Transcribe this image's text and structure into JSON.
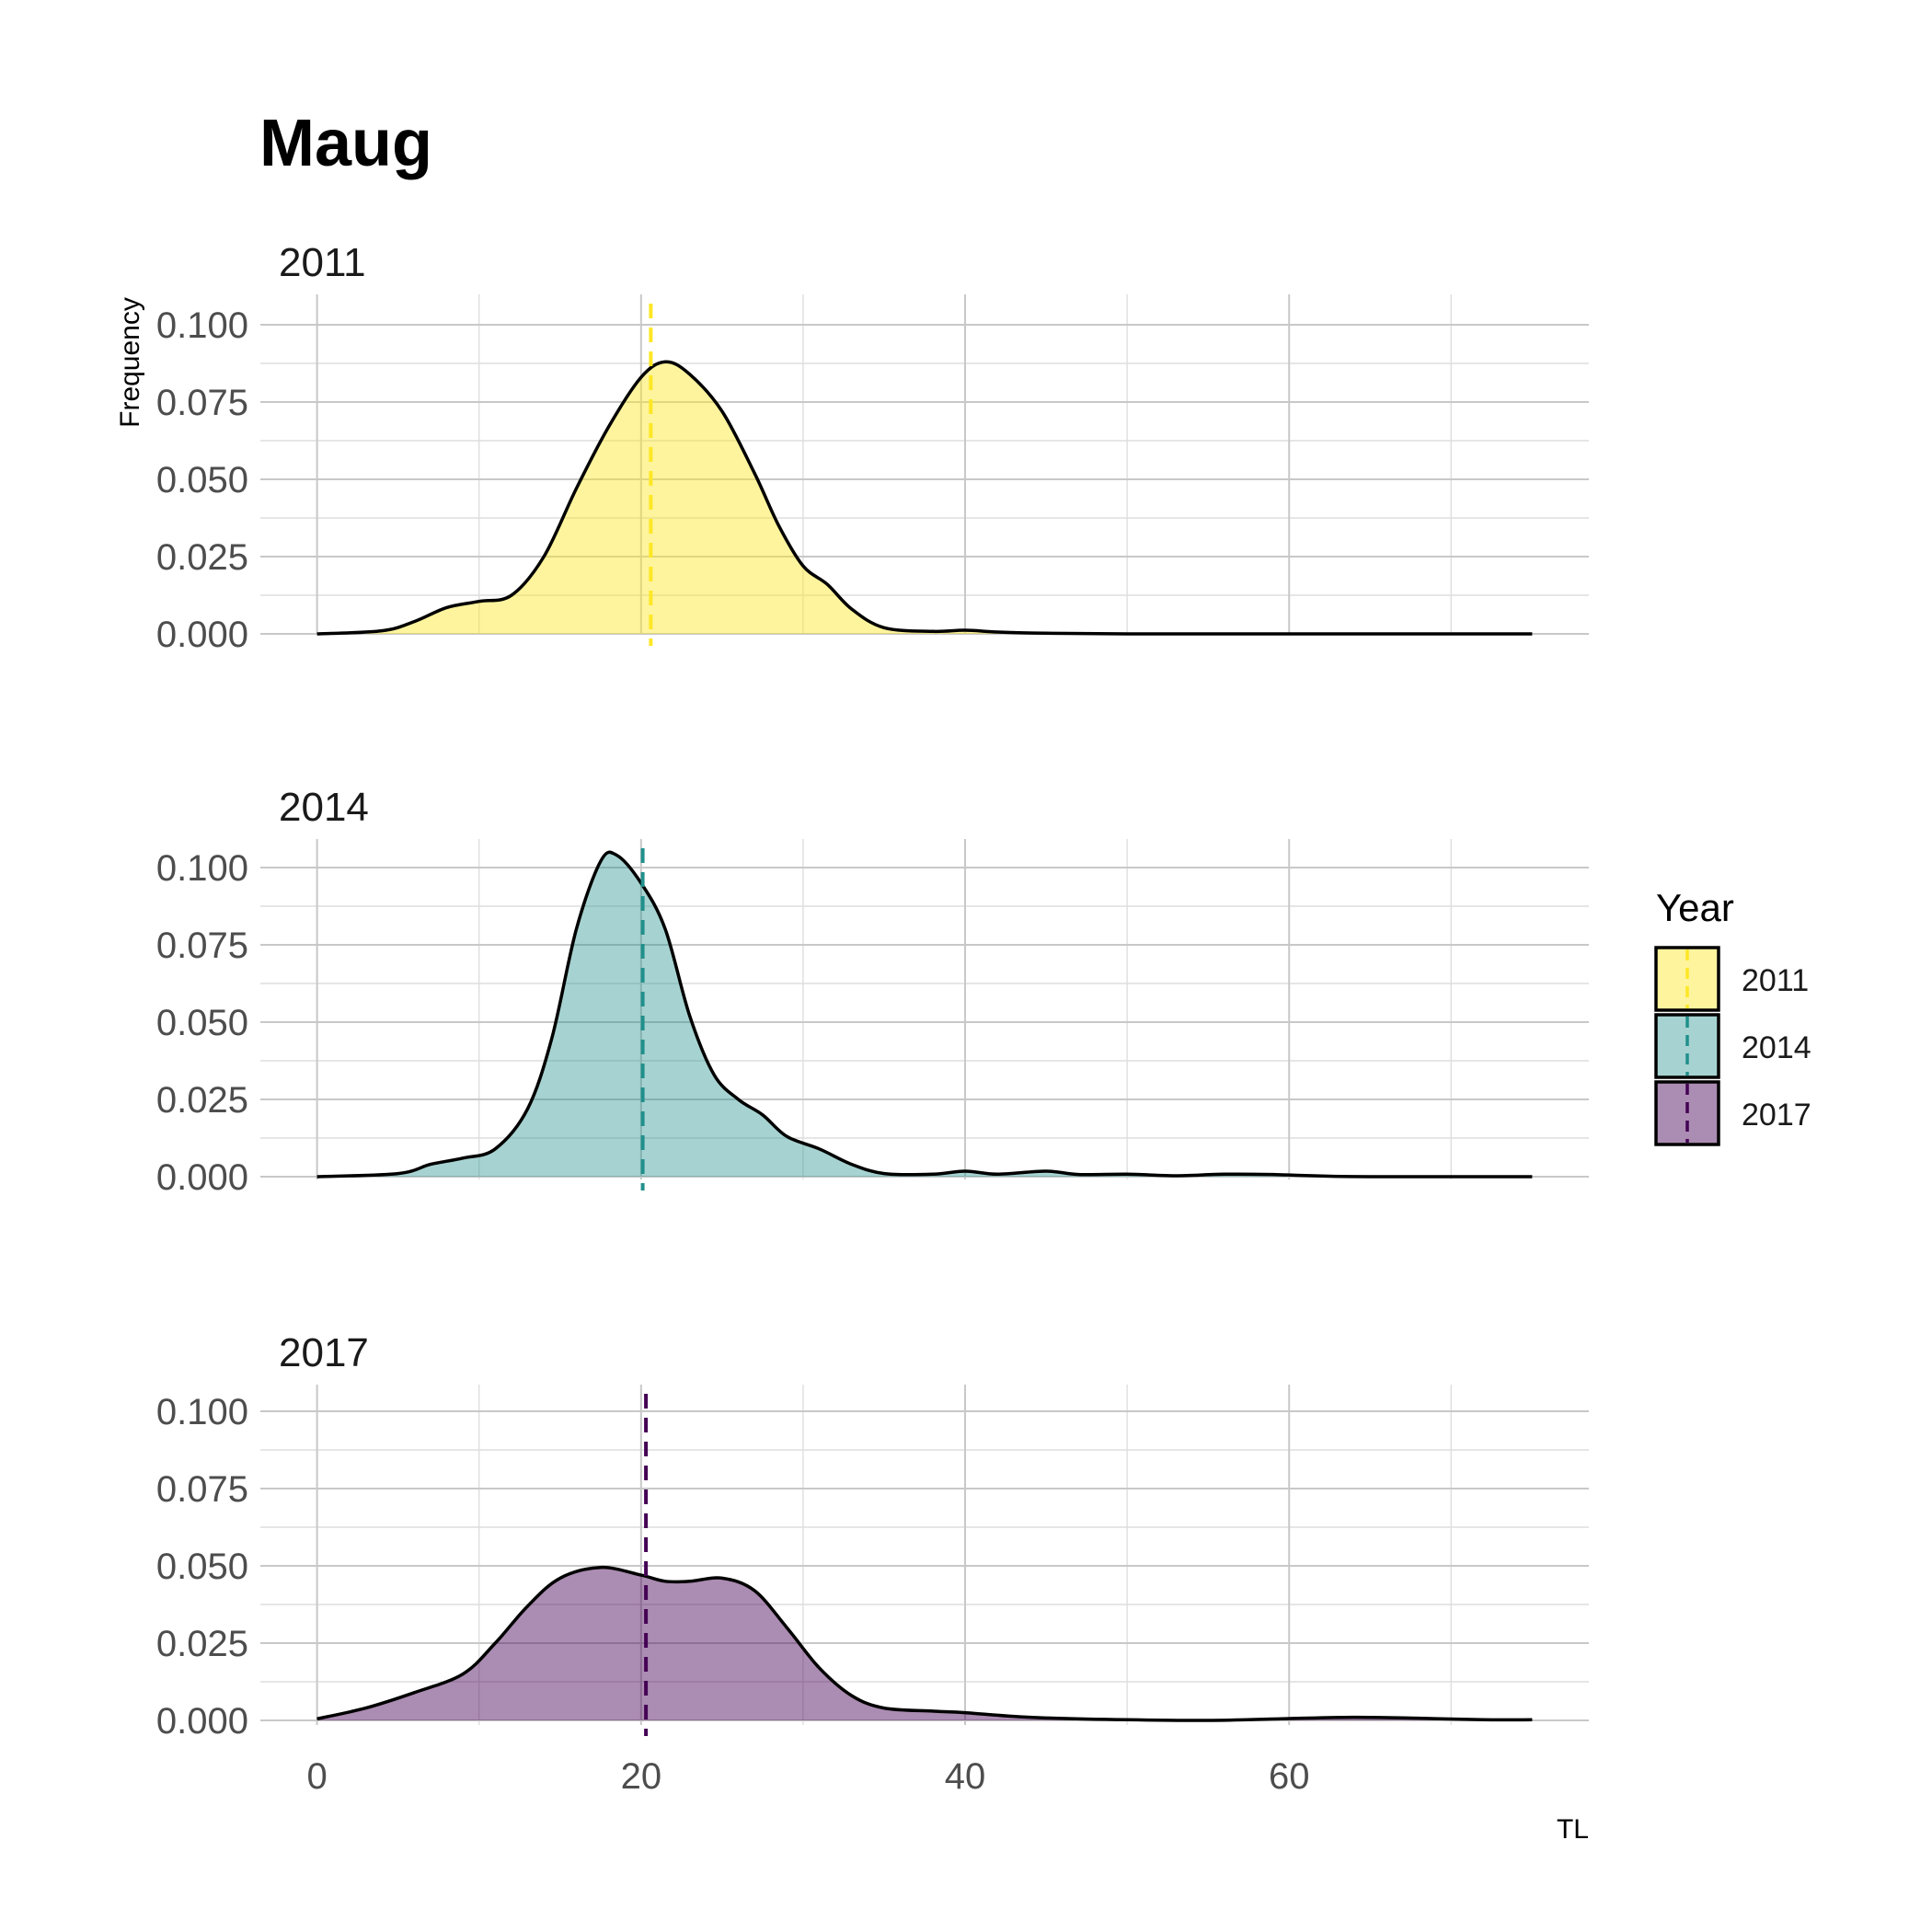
{
  "chart_data": {
    "type": "area",
    "title": "Maug",
    "xlabel": "TL",
    "ylabel": "Frequency",
    "xlim": [
      -3.5,
      78.5
    ],
    "ylim": [
      0,
      0.109
    ],
    "x_ticks": [
      "0",
      "20",
      "40",
      "60"
    ],
    "x_tick_values": [
      0,
      20,
      40,
      60
    ],
    "y_ticks": [
      "0.000",
      "0.025",
      "0.050",
      "0.075",
      "0.100"
    ],
    "y_tick_values": [
      0,
      0.025,
      0.05,
      0.075,
      0.1
    ],
    "grid": true,
    "legend": {
      "title": "Year",
      "placement": "right",
      "entries": [
        "2011",
        "2014",
        "2017"
      ]
    },
    "series": [
      {
        "name": "2011",
        "facet_title": "2011",
        "fill": "#FDE725",
        "fill_opacity": 0.45,
        "mean_line": 20.6,
        "mean_color": "#FDE725",
        "points": [
          [
            0,
            0
          ],
          [
            4,
            0.001
          ],
          [
            6,
            0.004
          ],
          [
            8,
            0.0085
          ],
          [
            10,
            0.0105
          ],
          [
            12,
            0.0125
          ],
          [
            14,
            0.025
          ],
          [
            16,
            0.047
          ],
          [
            18,
            0.067
          ],
          [
            20,
            0.083
          ],
          [
            21.5,
            0.088
          ],
          [
            23,
            0.084
          ],
          [
            25,
            0.072
          ],
          [
            27,
            0.052
          ],
          [
            28.5,
            0.035
          ],
          [
            30,
            0.022
          ],
          [
            31.5,
            0.016
          ],
          [
            33,
            0.008
          ],
          [
            35,
            0.002
          ],
          [
            38,
            0.0008
          ],
          [
            40,
            0.0012
          ],
          [
            42,
            0.0006
          ],
          [
            45,
            0.0002
          ],
          [
            50,
            0
          ],
          [
            60,
            0
          ],
          [
            75,
            0
          ]
        ]
      },
      {
        "name": "2014",
        "facet_title": "2014",
        "fill": "#21908C",
        "fill_opacity": 0.4,
        "mean_line": 20.1,
        "mean_color": "#21908C",
        "points": [
          [
            0,
            0
          ],
          [
            5,
            0.001
          ],
          [
            7,
            0.004
          ],
          [
            9,
            0.006
          ],
          [
            11,
            0.009
          ],
          [
            13,
            0.022
          ],
          [
            14.5,
            0.045
          ],
          [
            16,
            0.08
          ],
          [
            17.5,
            0.102
          ],
          [
            18.5,
            0.104
          ],
          [
            20,
            0.095
          ],
          [
            21.5,
            0.08
          ],
          [
            23,
            0.052
          ],
          [
            24.5,
            0.033
          ],
          [
            26,
            0.025
          ],
          [
            27.5,
            0.02
          ],
          [
            29,
            0.013
          ],
          [
            31,
            0.009
          ],
          [
            33,
            0.004
          ],
          [
            35,
            0.001
          ],
          [
            38,
            0.0008
          ],
          [
            40,
            0.0018
          ],
          [
            42,
            0.0008
          ],
          [
            45,
            0.0018
          ],
          [
            47,
            0.0007
          ],
          [
            50,
            0.0008
          ],
          [
            53,
            0.0003
          ],
          [
            56,
            0.0008
          ],
          [
            59,
            0.0007
          ],
          [
            62,
            0.0002
          ],
          [
            65,
            0
          ],
          [
            75,
            0
          ]
        ]
      },
      {
        "name": "2017",
        "facet_title": "2017",
        "fill": "#440154",
        "fill_opacity": 0.45,
        "mean_line": 20.3,
        "mean_color": "#440154",
        "points": [
          [
            0,
            0.0005
          ],
          [
            3,
            0.004
          ],
          [
            6,
            0.009
          ],
          [
            9,
            0.015
          ],
          [
            11,
            0.025
          ],
          [
            13,
            0.037
          ],
          [
            15,
            0.046
          ],
          [
            17.5,
            0.0495
          ],
          [
            20,
            0.047
          ],
          [
            21.5,
            0.045
          ],
          [
            23,
            0.045
          ],
          [
            25,
            0.046
          ],
          [
            27,
            0.042
          ],
          [
            29,
            0.03
          ],
          [
            31,
            0.017
          ],
          [
            33,
            0.008
          ],
          [
            35,
            0.004
          ],
          [
            38,
            0.003
          ],
          [
            40,
            0.0025
          ],
          [
            44,
            0.001
          ],
          [
            50,
            0.0002
          ],
          [
            55,
            0
          ],
          [
            60,
            0.0006
          ],
          [
            64,
            0.001
          ],
          [
            68,
            0.0007
          ],
          [
            72,
            0.0002
          ],
          [
            75,
            0.0002
          ]
        ]
      }
    ]
  }
}
